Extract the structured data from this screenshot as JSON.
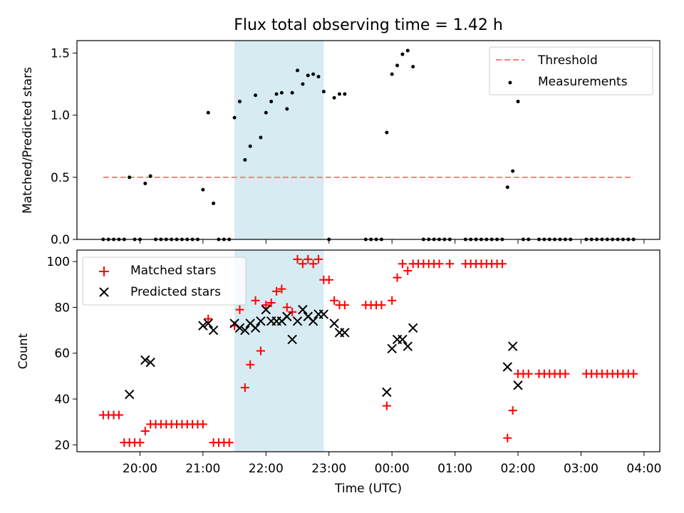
{
  "title": "Flux total observing time = 1.42 h",
  "colors": {
    "threshold": "#ff7f7f",
    "measurement": "#000000",
    "matched": "#ff0000",
    "predicted": "#000000",
    "shade": "#add8e6"
  },
  "chart_data": [
    {
      "type": "scatter",
      "panel": "top",
      "ylabel": "Matched/Predicted stars",
      "xlabel": "",
      "ylim": [
        0,
        1.6
      ],
      "yticks": [
        0.0,
        0.5,
        1.0,
        1.5
      ],
      "ytick_labels": [
        "0.0",
        "0.5",
        "1.0",
        "1.5"
      ],
      "legend_position": "top-right",
      "shaded_interval": [
        "21:30",
        "22:55"
      ],
      "threshold": {
        "name": "Threshold",
        "y": 0.5,
        "x_range": [
          "19:25",
          "03:50"
        ]
      },
      "series": [
        {
          "name": "Measurements",
          "points": [
            [
              "19:25",
              0
            ],
            [
              "19:30",
              0
            ],
            [
              "19:35",
              0
            ],
            [
              "19:40",
              0
            ],
            [
              "19:45",
              0
            ],
            [
              "19:50",
              0.5
            ],
            [
              "19:55",
              0
            ],
            [
              "20:00",
              0
            ],
            [
              "20:05",
              0.45
            ],
            [
              "20:10",
              0.51
            ],
            [
              "20:15",
              0
            ],
            [
              "20:20",
              0
            ],
            [
              "20:25",
              0
            ],
            [
              "20:30",
              0
            ],
            [
              "20:35",
              0
            ],
            [
              "20:40",
              0
            ],
            [
              "20:45",
              0
            ],
            [
              "20:50",
              0
            ],
            [
              "20:55",
              0
            ],
            [
              "21:00",
              0.4
            ],
            [
              "21:05",
              1.02
            ],
            [
              "21:10",
              0.29
            ],
            [
              "21:15",
              0
            ],
            [
              "21:20",
              0
            ],
            [
              "21:25",
              0
            ],
            [
              "21:30",
              0.98
            ],
            [
              "21:35",
              1.11
            ],
            [
              "21:40",
              0.64
            ],
            [
              "21:45",
              0.75
            ],
            [
              "21:50",
              1.16
            ],
            [
              "21:55",
              0.82
            ],
            [
              "22:00",
              1.02
            ],
            [
              "22:05",
              1.11
            ],
            [
              "22:10",
              1.17
            ],
            [
              "22:15",
              1.18
            ],
            [
              "22:20",
              1.05
            ],
            [
              "22:25",
              1.18
            ],
            [
              "22:30",
              1.36
            ],
            [
              "22:35",
              1.25
            ],
            [
              "22:40",
              1.32
            ],
            [
              "22:45",
              1.33
            ],
            [
              "22:50",
              1.31
            ],
            [
              "22:55",
              1.19
            ],
            [
              "23:00",
              0
            ],
            [
              "23:05",
              1.14
            ],
            [
              "23:10",
              1.17
            ],
            [
              "23:15",
              1.17
            ],
            [
              "23:35",
              0
            ],
            [
              "23:40",
              0
            ],
            [
              "23:45",
              0
            ],
            [
              "23:50",
              0
            ],
            [
              "23:55",
              0.86
            ],
            [
              "00:00",
              1.33
            ],
            [
              "00:05",
              1.4
            ],
            [
              "00:10",
              1.49
            ],
            [
              "00:15",
              1.52
            ],
            [
              "00:20",
              1.39
            ],
            [
              "00:30",
              0
            ],
            [
              "00:35",
              0
            ],
            [
              "00:40",
              0
            ],
            [
              "00:45",
              0
            ],
            [
              "00:50",
              0
            ],
            [
              "00:55",
              0
            ],
            [
              "01:10",
              0
            ],
            [
              "01:15",
              0
            ],
            [
              "01:20",
              0
            ],
            [
              "01:25",
              0
            ],
            [
              "01:30",
              0
            ],
            [
              "01:35",
              0
            ],
            [
              "01:40",
              0
            ],
            [
              "01:45",
              0
            ],
            [
              "01:50",
              0.42
            ],
            [
              "01:55",
              0.55
            ],
            [
              "02:00",
              1.11
            ],
            [
              "02:05",
              0
            ],
            [
              "02:10",
              0
            ],
            [
              "02:20",
              0
            ],
            [
              "02:25",
              0
            ],
            [
              "02:30",
              0
            ],
            [
              "02:35",
              0
            ],
            [
              "02:40",
              0
            ],
            [
              "02:45",
              0
            ],
            [
              "02:50",
              0
            ],
            [
              "03:05",
              0
            ],
            [
              "03:10",
              0
            ],
            [
              "03:15",
              0
            ],
            [
              "03:20",
              0
            ],
            [
              "03:25",
              0
            ],
            [
              "03:30",
              0
            ],
            [
              "03:35",
              0
            ],
            [
              "03:40",
              0
            ],
            [
              "03:45",
              0
            ],
            [
              "03:50",
              0
            ]
          ]
        }
      ]
    },
    {
      "type": "scatter",
      "panel": "bottom",
      "xlabel": "Time (UTC)",
      "ylabel": "Count",
      "ylim": [
        17,
        105
      ],
      "yticks": [
        20,
        40,
        60,
        80,
        100
      ],
      "ytick_labels": [
        "20",
        "40",
        "60",
        "80",
        "100"
      ],
      "xticks": [
        "20:00",
        "21:00",
        "22:00",
        "23:00",
        "00:00",
        "01:00",
        "02:00",
        "03:00",
        "04:00"
      ],
      "xlim": [
        "19:00",
        "04:15"
      ],
      "legend_position": "top-left",
      "shaded_interval": [
        "21:30",
        "22:55"
      ],
      "series": [
        {
          "name": "Matched stars",
          "marker": "plus",
          "points": [
            [
              "19:25",
              33
            ],
            [
              "19:30",
              33
            ],
            [
              "19:35",
              33
            ],
            [
              "19:40",
              33
            ],
            [
              "19:45",
              21
            ],
            [
              "19:50",
              21
            ],
            [
              "19:55",
              21
            ],
            [
              "20:00",
              21
            ],
            [
              "20:05",
              26
            ],
            [
              "20:10",
              29
            ],
            [
              "20:15",
              29
            ],
            [
              "20:20",
              29
            ],
            [
              "20:25",
              29
            ],
            [
              "20:30",
              29
            ],
            [
              "20:35",
              29
            ],
            [
              "20:40",
              29
            ],
            [
              "20:45",
              29
            ],
            [
              "20:50",
              29
            ],
            [
              "20:55",
              29
            ],
            [
              "21:00",
              29
            ],
            [
              "21:05",
              75
            ],
            [
              "21:10",
              21
            ],
            [
              "21:15",
              21
            ],
            [
              "21:20",
              21
            ],
            [
              "21:25",
              21
            ],
            [
              "21:30",
              72
            ],
            [
              "21:35",
              79
            ],
            [
              "21:40",
              45
            ],
            [
              "21:45",
              55
            ],
            [
              "21:50",
              83
            ],
            [
              "21:55",
              61
            ],
            [
              "22:00",
              81
            ],
            [
              "22:05",
              82
            ],
            [
              "22:10",
              87
            ],
            [
              "22:15",
              88
            ],
            [
              "22:20",
              80
            ],
            [
              "22:25",
              78
            ],
            [
              "22:30",
              101
            ],
            [
              "22:35",
              99
            ],
            [
              "22:40",
              101
            ],
            [
              "22:45",
              99
            ],
            [
              "22:50",
              101
            ],
            [
              "22:55",
              92
            ],
            [
              "23:00",
              92
            ],
            [
              "23:05",
              83
            ],
            [
              "23:10",
              81
            ],
            [
              "23:15",
              81
            ],
            [
              "23:35",
              81
            ],
            [
              "23:40",
              81
            ],
            [
              "23:45",
              81
            ],
            [
              "23:50",
              81
            ],
            [
              "23:55",
              37
            ],
            [
              "00:00",
              83
            ],
            [
              "00:05",
              93
            ],
            [
              "00:10",
              99
            ],
            [
              "00:15",
              96
            ],
            [
              "00:20",
              99
            ],
            [
              "00:25",
              99
            ],
            [
              "00:30",
              99
            ],
            [
              "00:35",
              99
            ],
            [
              "00:40",
              99
            ],
            [
              "00:45",
              99
            ],
            [
              "00:55",
              99
            ],
            [
              "01:10",
              99
            ],
            [
              "01:15",
              99
            ],
            [
              "01:20",
              99
            ],
            [
              "01:25",
              99
            ],
            [
              "01:30",
              99
            ],
            [
              "01:35",
              99
            ],
            [
              "01:40",
              99
            ],
            [
              "01:45",
              99
            ],
            [
              "01:50",
              23
            ],
            [
              "01:55",
              35
            ],
            [
              "02:00",
              51
            ],
            [
              "02:05",
              51
            ],
            [
              "02:10",
              51
            ],
            [
              "02:20",
              51
            ],
            [
              "02:25",
              51
            ],
            [
              "02:30",
              51
            ],
            [
              "02:35",
              51
            ],
            [
              "02:40",
              51
            ],
            [
              "02:45",
              51
            ],
            [
              "03:05",
              51
            ],
            [
              "03:10",
              51
            ],
            [
              "03:15",
              51
            ],
            [
              "03:20",
              51
            ],
            [
              "03:25",
              51
            ],
            [
              "03:30",
              51
            ],
            [
              "03:35",
              51
            ],
            [
              "03:40",
              51
            ],
            [
              "03:45",
              51
            ],
            [
              "03:50",
              51
            ]
          ]
        },
        {
          "name": "Predicted stars",
          "marker": "x",
          "points": [
            [
              "19:50",
              42
            ],
            [
              "20:05",
              57
            ],
            [
              "20:10",
              56
            ],
            [
              "21:00",
              72
            ],
            [
              "21:05",
              73
            ],
            [
              "21:10",
              70
            ],
            [
              "21:30",
              73
            ],
            [
              "21:35",
              71
            ],
            [
              "21:40",
              70
            ],
            [
              "21:45",
              73
            ],
            [
              "21:50",
              71
            ],
            [
              "21:55",
              74
            ],
            [
              "22:00",
              79
            ],
            [
              "22:05",
              74
            ],
            [
              "22:10",
              74
            ],
            [
              "22:15",
              74
            ],
            [
              "22:20",
              76
            ],
            [
              "22:25",
              66
            ],
            [
              "22:30",
              74
            ],
            [
              "22:35",
              79
            ],
            [
              "22:40",
              76
            ],
            [
              "22:45",
              74
            ],
            [
              "22:50",
              77
            ],
            [
              "22:55",
              77
            ],
            [
              "23:05",
              73
            ],
            [
              "23:10",
              69
            ],
            [
              "23:15",
              69
            ],
            [
              "23:55",
              43
            ],
            [
              "00:00",
              62
            ],
            [
              "00:05",
              66
            ],
            [
              "00:10",
              66
            ],
            [
              "00:15",
              63
            ],
            [
              "00:20",
              71
            ],
            [
              "01:50",
              54
            ],
            [
              "01:55",
              63
            ],
            [
              "02:00",
              46
            ]
          ]
        }
      ]
    }
  ]
}
